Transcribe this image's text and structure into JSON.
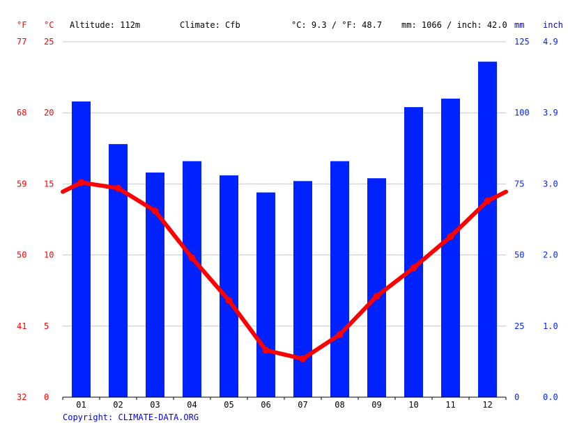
{
  "header": {
    "altitude": "Altitude: 112m",
    "climate": "Climate: Cfb",
    "avg_temp": "°C: 9.3 / °F: 48.7",
    "precip": "mm: 1066 / inch: 42.0"
  },
  "copyright": "Copyright: CLIMATE-DATA.ORG",
  "colors": {
    "temperature": "#ff0000",
    "precipitation": "#0022ff",
    "grid": "#c8c8c8"
  },
  "chart_data": {
    "type": "bar",
    "title": "",
    "categories": [
      "01",
      "02",
      "03",
      "04",
      "05",
      "06",
      "07",
      "08",
      "09",
      "10",
      "11",
      "12"
    ],
    "series": [
      {
        "type": "bar",
        "axis": "mm",
        "values": [
          104,
          89,
          79,
          83,
          78,
          72,
          76,
          83,
          77,
          102,
          105,
          118
        ]
      },
      {
        "type": "line",
        "axis": "°C",
        "values": [
          15.1,
          14.7,
          13.1,
          9.8,
          6.8,
          3.3,
          2.7,
          4.4,
          7.1,
          9.1,
          11.3,
          13.8
        ]
      }
    ],
    "axes": {
      "left_f": {
        "unit": "°F",
        "ticks": [
          "32",
          "41",
          "50",
          "59",
          "68",
          "77"
        ]
      },
      "left_c": {
        "unit": "°C",
        "ticks": [
          "0",
          "5",
          "10",
          "15",
          "20",
          "25"
        ],
        "range": [
          0,
          25
        ]
      },
      "right_mm": {
        "unit": "mm",
        "ticks": [
          "0",
          "25",
          "50",
          "75",
          "100",
          "125"
        ],
        "range": [
          0,
          125
        ]
      },
      "right_inch": {
        "unit": "inch",
        "ticks": [
          "0.0",
          "1.0",
          "2.0",
          "3.0",
          "3.9",
          "4.9"
        ]
      }
    },
    "grid": true
  }
}
